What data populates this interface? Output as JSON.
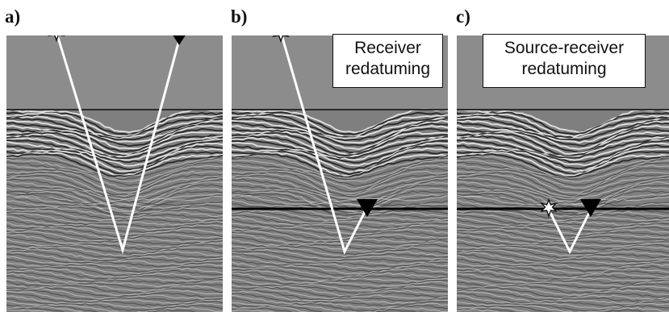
{
  "panels": [
    {
      "id": "a",
      "letter": "a)",
      "label": []
    },
    {
      "id": "b",
      "letter": "b)",
      "label": [
        "Receiver",
        "redatuming"
      ]
    },
    {
      "id": "c",
      "letter": "c)",
      "label": [
        "Source-receiver",
        "redatuming"
      ]
    }
  ],
  "icons": {
    "source": "star-source-icon",
    "receiver": "inverted-triangle-receiver-icon"
  },
  "colors": {
    "water": "#8c8c8c",
    "ray": "#ffffff",
    "datum": "#000000",
    "wiggle_dark": "#1a1a1a",
    "wiggle_light": "#f2f2f2"
  }
}
